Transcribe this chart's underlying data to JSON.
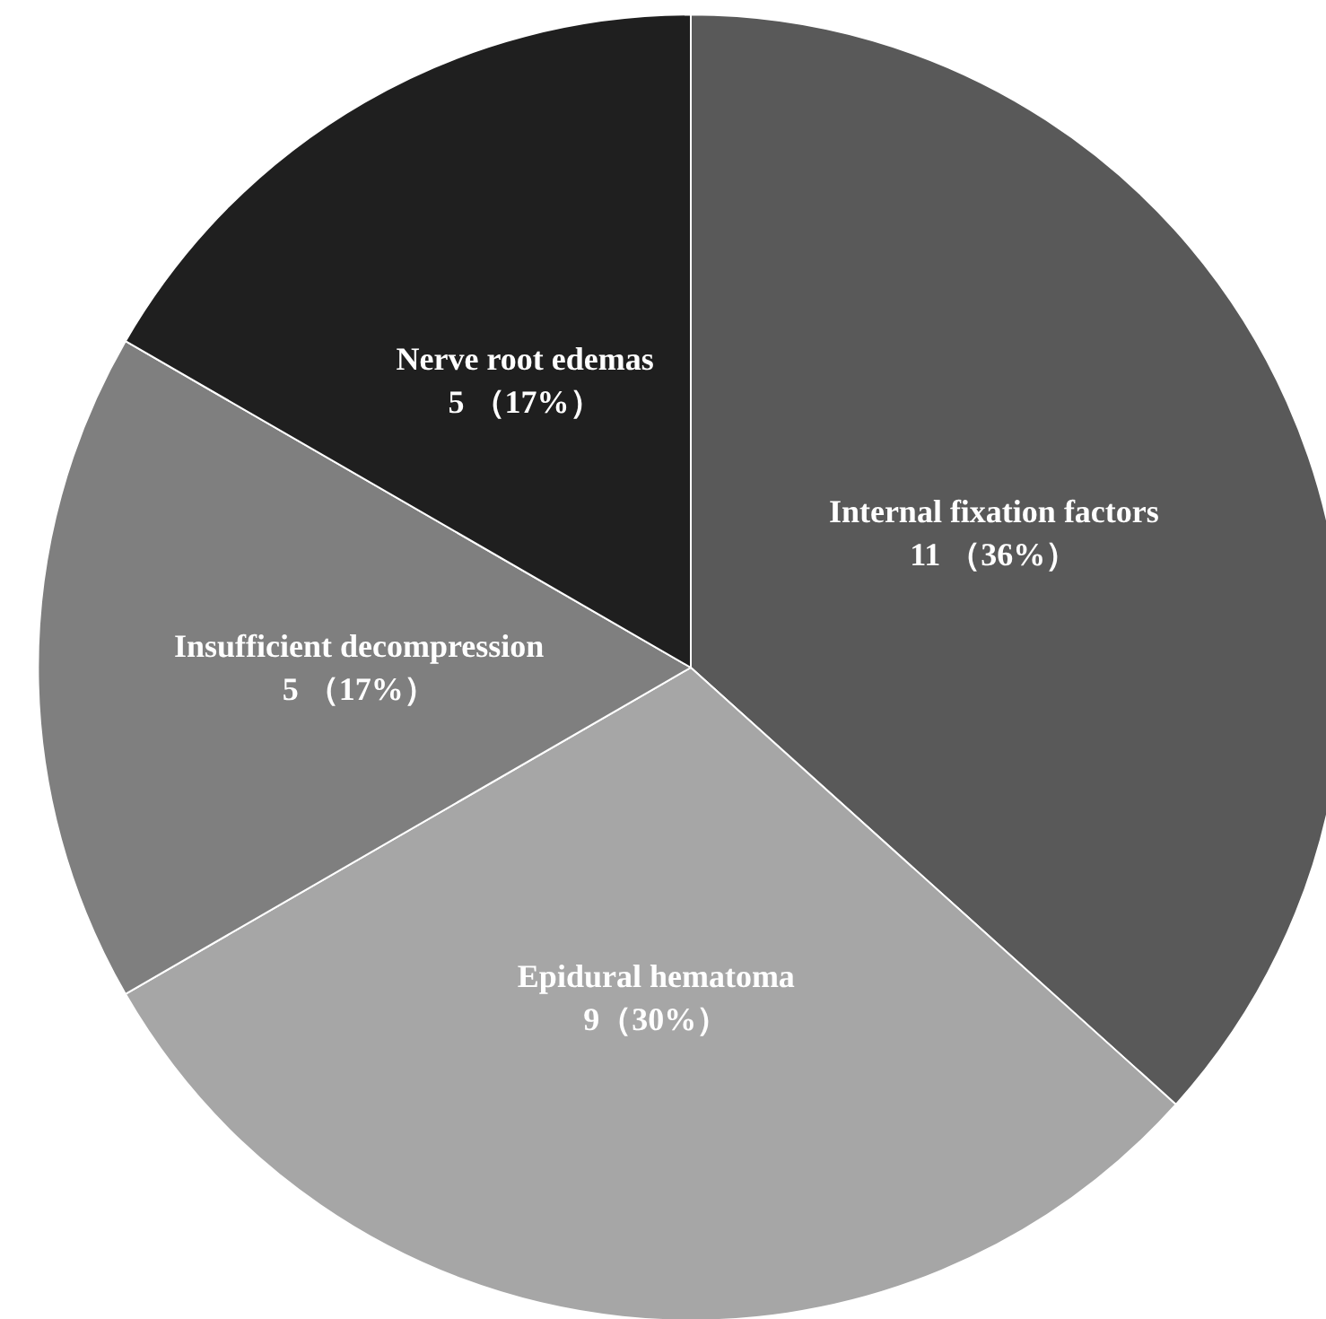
{
  "chart_data": {
    "type": "pie",
    "categories": [
      "Internal fixation factors",
      "Epidural hematoma",
      "Insufficient decompression",
      "Nerve root edemas"
    ],
    "values": [
      11,
      9,
      5,
      5
    ],
    "value_labels": [
      "11 （36%）",
      "9（30%）",
      "5 （17%）",
      "5 （17%）"
    ],
    "colors": [
      "#595959",
      "#a6a6a6",
      "#7f7f7f",
      "#1f1f1f"
    ],
    "legend": false
  }
}
